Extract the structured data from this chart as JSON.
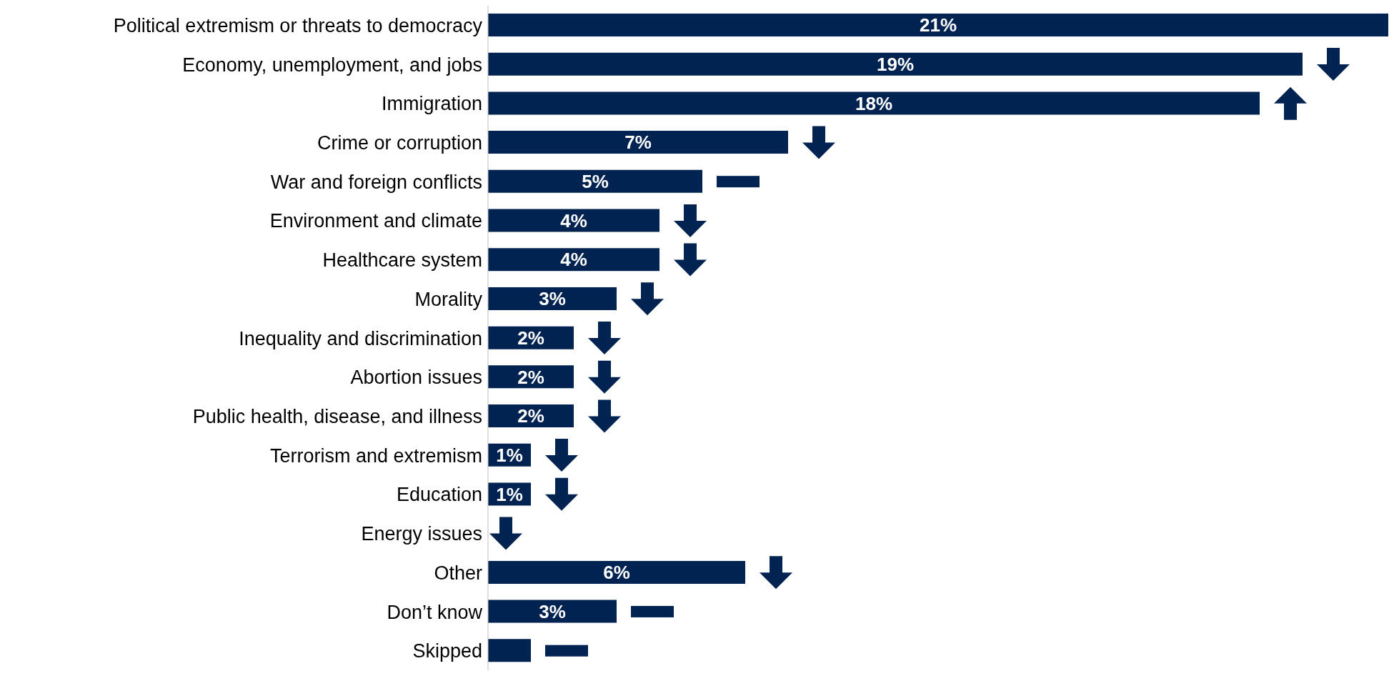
{
  "chart_data": {
    "type": "bar",
    "orientation": "horizontal",
    "categories": [
      "Political extremism or threats to democracy",
      "Economy, unemployment, and jobs",
      "Immigration",
      "Crime or corruption",
      "War and foreign conflicts",
      "Environment and climate",
      "Healthcare system",
      "Morality",
      "Inequality and discrimination",
      "Abortion issues",
      "Public health, disease, and illness",
      "Terrorism and extremism",
      "Education",
      "Energy issues",
      "Other",
      "Don’t know",
      "Skipped"
    ],
    "values": [
      21,
      19,
      18,
      7,
      5,
      4,
      4,
      3,
      2,
      2,
      2,
      1,
      1,
      null,
      6,
      3,
      1
    ],
    "value_labels": [
      "21%",
      "19%",
      "18%",
      "7%",
      "5%",
      "4%",
      "4%",
      "3%",
      "2%",
      "2%",
      "2%",
      "1%",
      "1%",
      null,
      "6%",
      "3%",
      null
    ],
    "color": "#002352"
  }
}
